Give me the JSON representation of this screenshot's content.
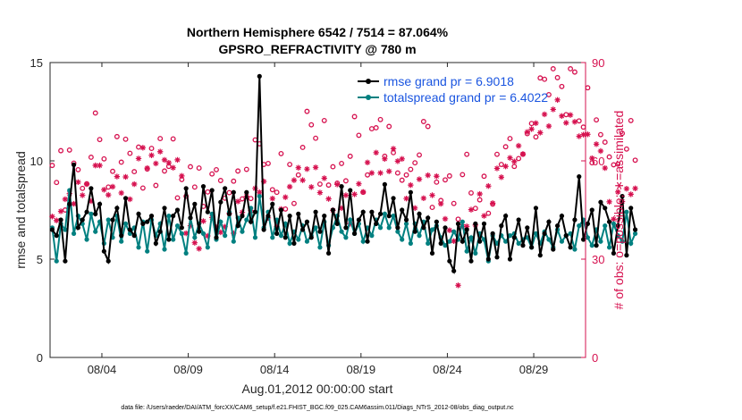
{
  "chart_data": {
    "type": "line",
    "title_line1": "Northern Hemisphere 6542 / 7514 = 87.064%",
    "title_line2": "GPSRO_REFRACTIVITY @ 780 m",
    "xlabel": "Aug.01,2012 00:00:00 start",
    "ylabel_left": "rmse and totalspread",
    "ylabel_right": "# of obs: o=possible; ∗=assimilated",
    "footnote": "data file: /Users/raeder/DAI/ATM_forcXX/CAM6_setup/f.e21.FHIST_BGC.f09_025.CAM6assim.011/Diags_NTrS_2012-08/obs_diag_output.nc",
    "x_range_days": [
      0,
      31
    ],
    "ylim_left": [
      0,
      15
    ],
    "ylim_right": [
      0,
      90
    ],
    "x_ticks": [
      {
        "day": 3,
        "label": "08/04"
      },
      {
        "day": 8,
        "label": "08/09"
      },
      {
        "day": 13,
        "label": "08/14"
      },
      {
        "day": 18,
        "label": "08/19"
      },
      {
        "day": 23,
        "label": "08/24"
      },
      {
        "day": 28,
        "label": "08/29"
      }
    ],
    "y_ticks_left": [
      {
        "value": 0,
        "label": "0"
      },
      {
        "value": 5,
        "label": "5"
      },
      {
        "value": 10,
        "label": "10"
      },
      {
        "value": 15,
        "label": "15"
      }
    ],
    "y_ticks_right": [
      {
        "value": 0,
        "label": "0"
      },
      {
        "value": 30,
        "label": "30"
      },
      {
        "value": 60,
        "label": "60"
      },
      {
        "value": 90,
        "label": "90"
      }
    ],
    "colors": {
      "rmse": "#000000",
      "spread": "#008080",
      "obs": "#d6114f",
      "legend_text": "#1a55e0"
    },
    "series": [
      {
        "name": "rmse grand pr = 6.9018",
        "key": "rmse",
        "start_day": 0.125,
        "step_days": 0.25,
        "values": [
          6.5,
          6.2,
          7.0,
          4.9,
          7.8,
          9.8,
          6.6,
          7.0,
          7.4,
          8.6,
          7.3,
          7.8,
          5.4,
          4.9,
          7.0,
          7.6,
          6.2,
          8.1,
          6.5,
          6.2,
          7.3,
          6.8,
          6.9,
          7.2,
          5.8,
          6.4,
          7.6,
          6.0,
          7.2,
          7.5,
          6.6,
          8.6,
          7.1,
          7.8,
          6.4,
          8.7,
          7.4,
          8.5,
          6.1,
          7.9,
          8.6,
          7.3,
          8.4,
          6.7,
          7.2,
          8.4,
          6.9,
          7.4,
          14.3,
          6.5,
          7.2,
          7.8,
          6.3,
          7.5,
          6.1,
          7.2,
          5.8,
          7.3,
          6.5,
          6.9,
          6.1,
          7.4,
          6.4,
          7.2,
          5.3,
          7.5,
          6.8,
          8.7,
          6.6,
          8.5,
          6.3,
          7.0,
          7.4,
          5.9,
          7.4,
          6.8,
          7.3,
          8.8,
          7.2,
          8.1,
          6.6,
          7.5,
          7.0,
          8.4,
          6.4,
          7.3,
          6.6,
          7.1,
          5.3,
          6.9,
          5.8,
          6.6,
          4.9,
          4.4,
          6.8,
          5.9,
          6.5,
          4.9,
          6.8,
          5.9,
          6.8,
          5.0,
          6.3,
          5.1,
          6.7,
          7.2,
          5.0,
          6.1,
          7.0,
          5.7,
          6.6,
          5.6,
          7.6,
          5.2,
          6.3,
          6.9,
          5.5,
          6.7,
          7.2,
          6.2,
          5.6,
          7.0,
          9.2,
          6.0,
          6.8,
          7.5,
          5.7,
          7.9,
          7.6,
          6.9,
          5.3,
          6.7,
          8.2,
          5.2,
          7.6,
          6.5
        ]
      },
      {
        "name": "totalspread grand pr = 6.4022",
        "key": "spread",
        "start_day": 0.125,
        "step_days": 0.25,
        "values": [
          6.6,
          4.9,
          6.8,
          6.5,
          8.5,
          6.3,
          7.2,
          6.8,
          6.0,
          7.3,
          6.4,
          6.9,
          5.8,
          7.0,
          6.1,
          7.2,
          5.9,
          6.8,
          6.3,
          6.6,
          5.6,
          6.9,
          5.4,
          7.0,
          6.2,
          6.8,
          5.5,
          7.2,
          6.0,
          6.7,
          6.3,
          5.3,
          7.1,
          6.1,
          6.8,
          6.3,
          5.6,
          7.3,
          6.0,
          6.9,
          6.2,
          7.4,
          5.9,
          7.1,
          6.4,
          7.0,
          7.6,
          6.1,
          8.2,
          6.6,
          7.4,
          6.1,
          7.0,
          6.2,
          6.8,
          5.8,
          6.4,
          6.0,
          6.7,
          5.9,
          6.2,
          6.6,
          5.6,
          6.9,
          5.7,
          6.6,
          7.2,
          6.4,
          6.1,
          7.0,
          6.3,
          6.8,
          5.9,
          6.6,
          6.2,
          7.0,
          6.6,
          7.3,
          6.6,
          7.2,
          6.4,
          6.0,
          6.8,
          5.8,
          6.8,
          6.2,
          6.9,
          5.8,
          6.5,
          6.7,
          6.1,
          5.7,
          5.9,
          6.4,
          6.0,
          6.9,
          5.4,
          6.1,
          5.3,
          6.3,
          6.0,
          4.9,
          6.2,
          5.8,
          6.2,
          5.9,
          6.2,
          6.3,
          5.8,
          6.0,
          6.1,
          5.6,
          6.3,
          5.8,
          6.4,
          6.0,
          5.6,
          6.5,
          5.9,
          6.2,
          6.3,
          5.5,
          6.7,
          7.0,
          6.1,
          5.7,
          6.5,
          5.9,
          6.7,
          5.6,
          6.8,
          6.2,
          5.9,
          7.4,
          5.8,
          6.3
        ]
      },
      {
        "name": "possible",
        "key": "possible",
        "marker": "circle",
        "start_day": 0.125,
        "step_days": 0.25,
        "values": [
          58.6,
          53.4,
          63.1,
          45.0,
          63.3,
          59.3,
          57.3,
          51.6,
          53.0,
          61.1,
          74.6,
          66.5,
          60.6,
          52.0,
          56.8,
          67.4,
          59.6,
          66.6,
          62.3,
          56.7,
          64.2,
          51.7,
          57.5,
          63.8,
          52.5,
          66.8,
          56.9,
          58.3,
          66.7,
          48.7,
          54.3,
          49.2,
          58.2,
          52.0,
          57.8,
          46.1,
          50.5,
          56.0,
          57.3,
          54.0,
          48.6,
          50.3,
          53.8,
          56.9,
          48.4,
          57.4,
          48.5,
          66.4,
          65.2,
          58.9,
          59.2,
          51.2,
          50.4,
          62.2,
          45.3,
          58.9,
          47.0,
          55.7,
          64.1,
          75.1,
          71.0,
          66.9,
          52.9,
          72.3,
          52.6,
          58.2,
          53.2,
          59.2,
          53.9,
          61.4,
          73.5,
          67.8,
          50.4,
          55.7,
          69.8,
          70.1,
          72.6,
          61.4,
          70.5,
          62.5,
          56.3,
          54.1,
          55.7,
          57.4,
          59.4,
          61.8,
          72.0,
          70.5,
          45.8,
          53.5,
          47.9,
          54.2,
          55.4,
          47.0,
          42.2,
          55.8,
          62.0,
          50.2,
          45.5,
          48.1,
          55.3,
          44.0,
          46.8,
          62.0,
          58.9,
          64.3,
          66.8,
          58.3,
          60.7,
          62.0,
          68.3,
          71.4,
          67.3,
          85.3,
          84.9,
          80.2,
          88.1,
          85.4,
          82.7,
          74.1,
          88.1,
          87.1,
          72.2,
          70.3,
          82.3,
          59.4,
          72.5,
          68.0,
          65.7,
          61.2,
          58.8,
          59.0,
          68.4,
          63.6,
          72.3,
          60.2
        ]
      },
      {
        "name": "assimilated",
        "key": "assimilated",
        "marker": "asterisk",
        "start_day": 0.125,
        "step_days": 0.25,
        "values": [
          43.0,
          41.8,
          44.6,
          48.3,
          50.0,
          46.9,
          53.5,
          49.5,
          52.9,
          47.7,
          58.6,
          58.6,
          51.2,
          49.6,
          52.1,
          55.2,
          50.2,
          55.1,
          48.3,
          52.9,
          60.7,
          64.0,
          57.8,
          61.7,
          59.2,
          62.8,
          60.3,
          59.4,
          57.9,
          60.3,
          55.4,
          37.9,
          40.2,
          35.0,
          33.2,
          41.6,
          37.1,
          42.7,
          39.7,
          38.2,
          39.9,
          43.9,
          37.9,
          47.6,
          44.3,
          49.2,
          44.8,
          51.6,
          50.4,
          53.7,
          42.6,
          48.5,
          40.0,
          45.3,
          48.9,
          52.1,
          54.1,
          57.9,
          54.1,
          57.5,
          52.0,
          58.0,
          50.3,
          54.7,
          48.4,
          44.9,
          52.8,
          45.6,
          49.5,
          40.8,
          49.8,
          53.0,
          50.5,
          59.5,
          56.3,
          62.5,
          56.3,
          60.6,
          56.8,
          63.7,
          59.9,
          60.6,
          48.5,
          52.6,
          45.6,
          54.4,
          48.6,
          55.6,
          49.5,
          55.3,
          46.9,
          42.3,
          38.8,
          35.5,
          22.0,
          40.0,
          40.0,
          45.1,
          40.4,
          49.9,
          43.2,
          52.3,
          47.1,
          57.7,
          55.0,
          58.3,
          60.9,
          59.8,
          64.6,
          62.1,
          68.8,
          69.7,
          71.5,
          68.6,
          74.2,
          70.6,
          75.7,
          78.6,
          73.7,
          71.6,
          74.0,
          71.9,
          67.5,
          68.0,
          68.1,
          60.8,
          65.1,
          63.0,
          57.8,
          47.5,
          42.2,
          50.5,
          47.6,
          51.5,
          49.8,
          51.6
        ]
      }
    ],
    "legend_placement": "top-right"
  }
}
